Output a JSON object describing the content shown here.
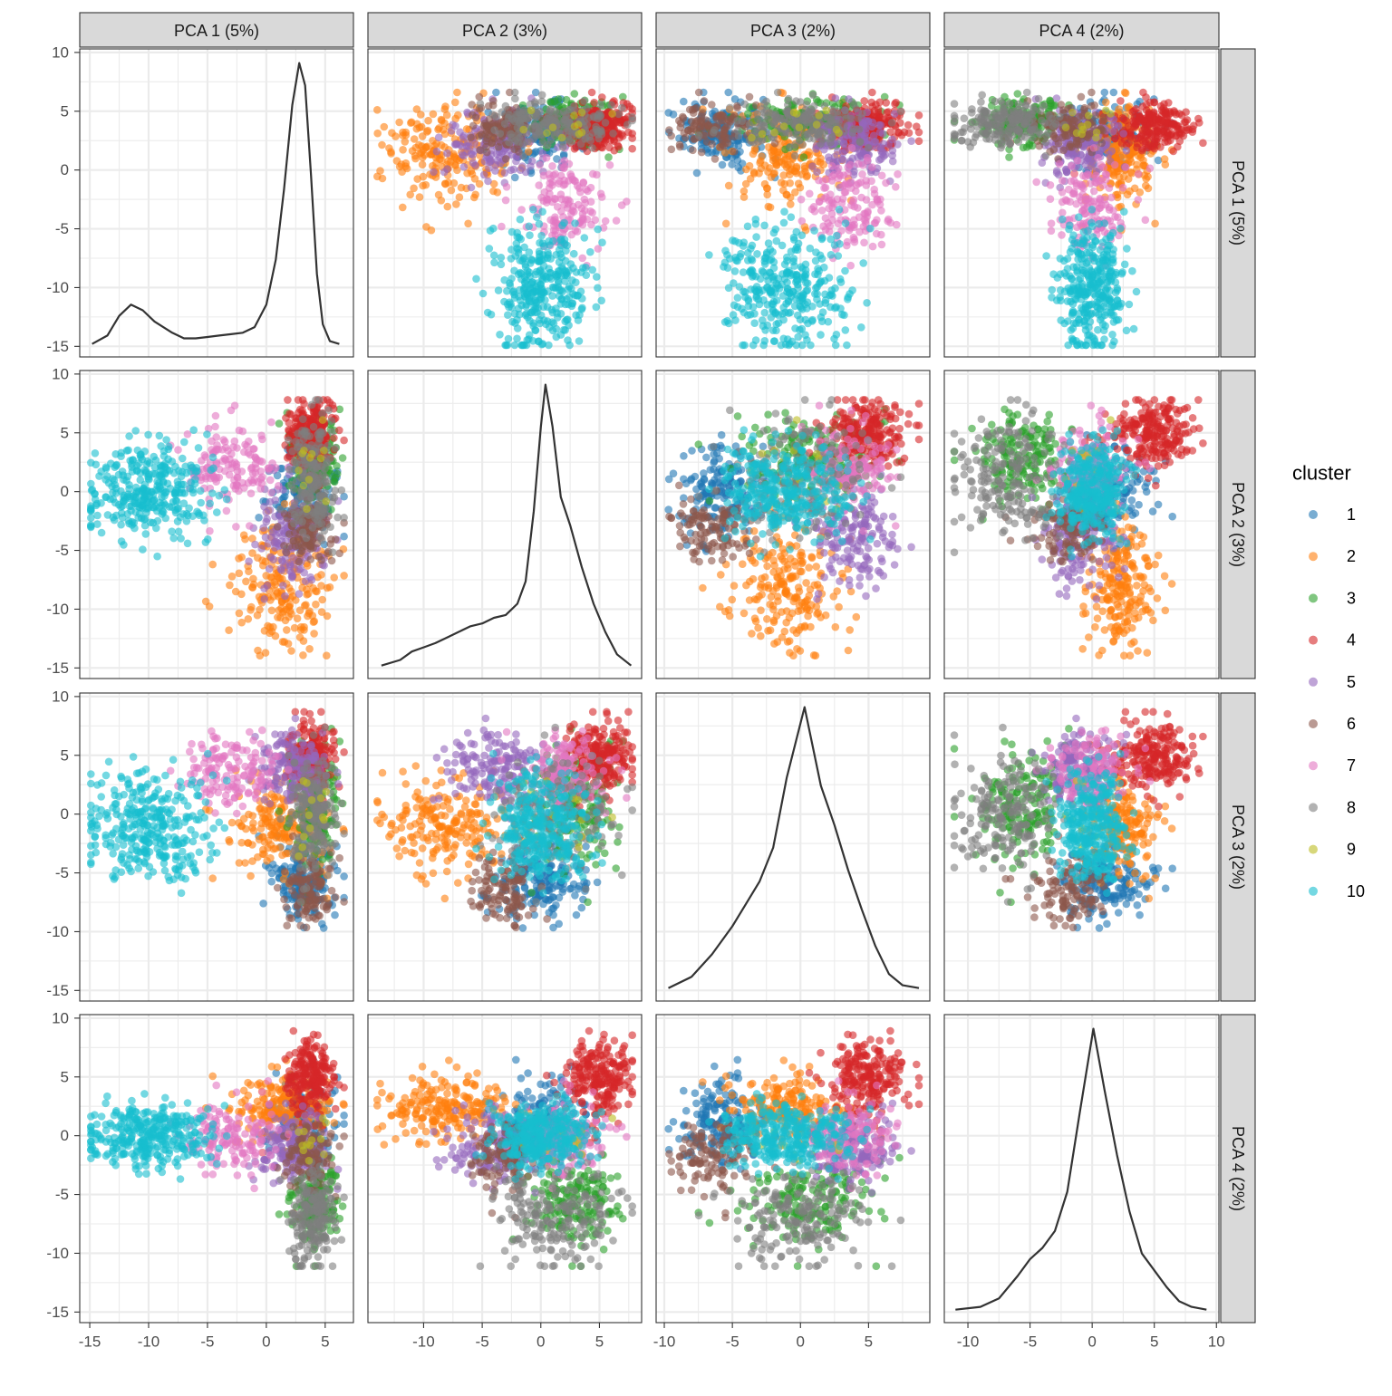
{
  "chart_data": {
    "type": "scatter",
    "layout": "scatterplot-matrix with density diagonal",
    "variables": [
      "PCA 1 (5%)",
      "PCA 2 (3%)",
      "PCA 3 (2%)",
      "PCA 4 (2%)"
    ],
    "axis_ranges": [
      [
        -15.85,
        7.4
      ],
      [
        -14.75,
        8.6
      ],
      [
        -10.6,
        9.5
      ],
      [
        -11.9,
        10.2
      ]
    ],
    "y_range": [
      -15.9,
      10.3
    ],
    "x_ticks": [
      [
        "-15",
        "-10",
        "-5",
        "0",
        "5"
      ],
      [
        "-10",
        "-5",
        "0",
        "5"
      ],
      [
        "-10",
        "-5",
        "0",
        "5"
      ],
      [
        "-10",
        "-5",
        "0",
        "5",
        "10"
      ]
    ],
    "y_ticks": [
      "-15",
      "-10",
      "-5",
      "0",
      "5",
      "10"
    ],
    "grid": true,
    "legend": {
      "title": "cluster",
      "placement": "right",
      "items": [
        "1",
        "2",
        "3",
        "4",
        "5",
        "6",
        "7",
        "8",
        "9",
        "10"
      ]
    },
    "point_alpha": 0.6,
    "clusters": [
      {
        "id": "1",
        "color": "#1f77b4",
        "approx_centroid": [
          3.0,
          0.0,
          -6.0,
          1.0
        ],
        "approx_spread": [
          1.4,
          2.0,
          1.6,
          1.8
        ]
      },
      {
        "id": "2",
        "color": "#ff7f0e",
        "approx_centroid": [
          1.5,
          -8.0,
          -1.0,
          2.0
        ],
        "approx_spread": [
          2.2,
          3.0,
          2.0,
          1.5
        ]
      },
      {
        "id": "3",
        "color": "#2ca02c",
        "approx_centroid": [
          4.0,
          3.0,
          0.5,
          -5.5
        ],
        "approx_spread": [
          1.0,
          2.0,
          2.5,
          2.0
        ]
      },
      {
        "id": "4",
        "color": "#d62728",
        "approx_centroid": [
          3.8,
          5.0,
          5.0,
          5.0
        ],
        "approx_spread": [
          1.0,
          1.5,
          1.5,
          1.6
        ]
      },
      {
        "id": "5",
        "color": "#9467bd",
        "approx_centroid": [
          2.0,
          -4.0,
          4.0,
          -1.0
        ],
        "approx_spread": [
          1.5,
          2.2,
          1.6,
          1.5
        ]
      },
      {
        "id": "6",
        "color": "#8c564b",
        "approx_centroid": [
          3.5,
          -3.0,
          -6.5,
          -2.0
        ],
        "approx_spread": [
          1.0,
          1.5,
          1.5,
          1.5
        ]
      },
      {
        "id": "7",
        "color": "#e377c2",
        "approx_centroid": [
          -3.0,
          2.0,
          3.5,
          0.0
        ],
        "approx_spread": [
          2.0,
          1.8,
          1.5,
          1.5
        ]
      },
      {
        "id": "8",
        "color": "#7f7f7f",
        "approx_centroid": [
          4.0,
          1.0,
          0.0,
          -7.0
        ],
        "approx_spread": [
          1.0,
          2.5,
          2.5,
          2.0
        ]
      },
      {
        "id": "9",
        "color": "#bcbd22",
        "approx_centroid": [
          4.0,
          2.0,
          0.0,
          0.0
        ],
        "approx_spread": [
          1.0,
          2.0,
          2.0,
          2.0
        ]
      },
      {
        "id": "10",
        "color": "#17becf",
        "approx_centroid": [
          -10.0,
          0.0,
          -1.0,
          0.0
        ],
        "approx_spread": [
          2.6,
          2.0,
          2.4,
          1.3
        ]
      }
    ],
    "densities": [
      {
        "variable": "PCA 1 (5%)",
        "x": [
          -14.8,
          -13.5,
          -12.5,
          -11.5,
          -10.5,
          -9.5,
          -8,
          -7,
          -6,
          -5,
          -4,
          -3,
          -2,
          -1,
          0,
          0.8,
          1.5,
          2.2,
          2.8,
          3.3,
          3.8,
          4.3,
          4.8,
          5.4,
          6.2
        ],
        "density": [
          0,
          0.03,
          0.1,
          0.14,
          0.12,
          0.08,
          0.04,
          0.02,
          0.02,
          0.025,
          0.03,
          0.035,
          0.04,
          0.06,
          0.14,
          0.3,
          0.55,
          0.85,
          1.0,
          0.92,
          0.6,
          0.25,
          0.07,
          0.01,
          0
        ]
      },
      {
        "variable": "PCA 2 (3%)",
        "x": [
          -13.6,
          -12,
          -11,
          -10,
          -9,
          -8,
          -7,
          -6,
          -5,
          -4,
          -3,
          -2,
          -1.3,
          -0.6,
          0,
          0.4,
          1,
          1.7,
          2.5,
          3.5,
          4.5,
          5.5,
          6.5,
          7.7
        ],
        "density": [
          0,
          0.02,
          0.05,
          0.065,
          0.08,
          0.1,
          0.12,
          0.14,
          0.15,
          0.17,
          0.18,
          0.22,
          0.3,
          0.55,
          0.85,
          1.0,
          0.85,
          0.6,
          0.5,
          0.35,
          0.22,
          0.12,
          0.04,
          0
        ]
      },
      {
        "variable": "PCA 3 (2%)",
        "x": [
          -9.7,
          -8,
          -6.5,
          -5,
          -4,
          -3,
          -2,
          -1,
          0.3,
          1.5,
          2.5,
          3.5,
          4.5,
          5.5,
          6.5,
          7.5,
          8.7
        ],
        "density": [
          0,
          0.04,
          0.12,
          0.22,
          0.3,
          0.38,
          0.5,
          0.75,
          1.0,
          0.72,
          0.58,
          0.42,
          0.28,
          0.15,
          0.05,
          0.01,
          0
        ]
      },
      {
        "variable": "PCA 4 (2%)",
        "x": [
          -11,
          -9,
          -7.5,
          -6,
          -5,
          -4,
          -3,
          -2,
          -1,
          0.1,
          1,
          2,
          3,
          4,
          5,
          6,
          7,
          8,
          9.2
        ],
        "density": [
          0,
          0.01,
          0.04,
          0.12,
          0.18,
          0.22,
          0.28,
          0.42,
          0.7,
          1.0,
          0.78,
          0.55,
          0.35,
          0.2,
          0.14,
          0.08,
          0.03,
          0.01,
          0
        ]
      }
    ]
  }
}
